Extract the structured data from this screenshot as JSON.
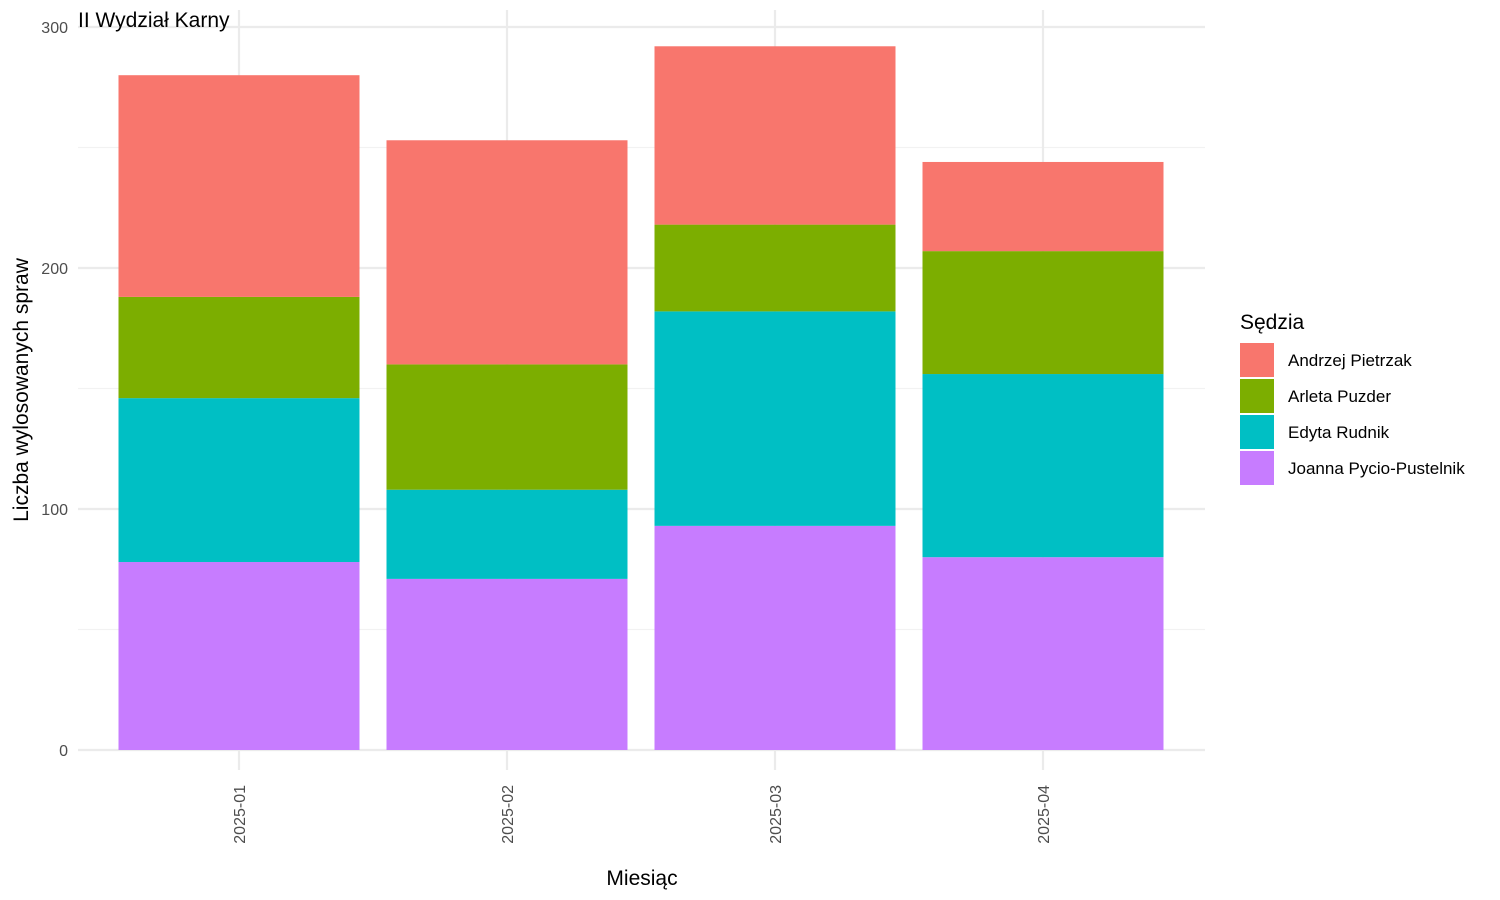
{
  "chart_data": {
    "type": "bar",
    "stacked": true,
    "title": "II Wydział Karny",
    "xlabel": "Miesiąc",
    "ylabel": "Liczba wylosowanych spraw",
    "categories": [
      "2025-01",
      "2025-02",
      "2025-03",
      "2025-04"
    ],
    "ylim": [
      0,
      300
    ],
    "yticks": [
      0,
      100,
      200,
      300
    ],
    "grid": true,
    "legend": {
      "title": "Sędzia",
      "placement": "right"
    },
    "series": [
      {
        "name": "Joanna Pycio-Pustelnik",
        "color": "#C77CFF",
        "values": [
          78,
          71,
          93,
          80
        ]
      },
      {
        "name": "Edyta Rudnik",
        "color": "#00BFC4",
        "values": [
          68,
          37,
          89,
          76
        ]
      },
      {
        "name": "Arleta Puzder",
        "color": "#7CAE00",
        "values": [
          42,
          52,
          36,
          51
        ]
      },
      {
        "name": "Andrzej Pietrzak",
        "color": "#F8766D",
        "values": [
          92,
          93,
          74,
          37
        ]
      }
    ],
    "legend_order": [
      "Andrzej Pietrzak",
      "Arleta Puzder",
      "Edyta Rudnik",
      "Joanna Pycio-Pustelnik"
    ]
  }
}
